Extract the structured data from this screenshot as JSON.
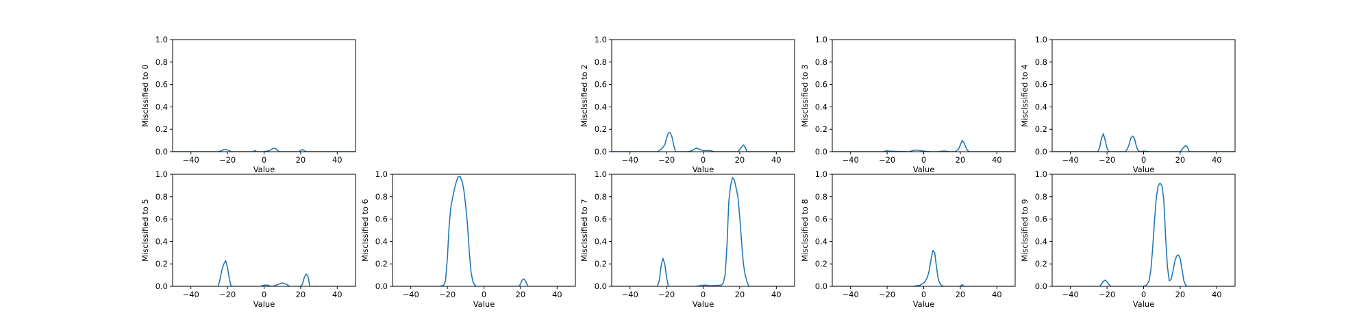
{
  "chart_data": [
    {
      "type": "line",
      "panel": "0",
      "xlabel": "Value",
      "ylabel": "Misclssified to 0",
      "xlim": [
        -50,
        50
      ],
      "ylim": [
        0,
        1
      ],
      "xticks": [
        -40,
        -20,
        0,
        20,
        40
      ],
      "xtick_labels": [
        "−40",
        "−20",
        "0",
        "20",
        "40"
      ],
      "yticks": [
        0,
        0.2,
        0.4,
        0.6,
        0.8,
        1.0
      ],
      "ytick_labels": [
        "0.0",
        "0.2",
        "0.4",
        "0.6",
        "0.8",
        "1.0"
      ],
      "color": "#1f77b4",
      "x": [
        -50,
        -25,
        -23,
        -22,
        -21,
        -19,
        -18,
        -6,
        -5,
        -4,
        0,
        3,
        4,
        5,
        6,
        7,
        8,
        19,
        20,
        21,
        22,
        23,
        24,
        50
      ],
      "y": [
        0,
        0,
        0.01,
        0.02,
        0.02,
        0.01,
        0,
        0,
        0.01,
        0,
        0,
        0.01,
        0.02,
        0.03,
        0.03,
        0.02,
        0,
        0,
        0.01,
        0.02,
        0.01,
        0,
        0,
        0
      ]
    },
    {
      "type": "line",
      "panel": "2",
      "xlabel": "Value",
      "ylabel": "Misclssified to 2",
      "xlim": [
        -50,
        50
      ],
      "ylim": [
        0,
        1
      ],
      "xticks": [
        -40,
        -20,
        0,
        20,
        40
      ],
      "xtick_labels": [
        "−40",
        "−20",
        "0",
        "20",
        "40"
      ],
      "yticks": [
        0,
        0.2,
        0.4,
        0.6,
        0.8,
        1.0
      ],
      "ytick_labels": [
        "0.0",
        "0.2",
        "0.4",
        "0.6",
        "0.8",
        "1.0"
      ],
      "color": "#1f77b4",
      "x": [
        -50,
        -25,
        -24,
        -23,
        -22,
        -21,
        -20,
        -19,
        -18,
        -17,
        -16,
        -15,
        -8,
        -6,
        -5,
        -4,
        -3,
        -2,
        0,
        2,
        4,
        6,
        19,
        20,
        21,
        22,
        23,
        24,
        50
      ],
      "y": [
        0,
        0,
        0.01,
        0.02,
        0.04,
        0.06,
        0.12,
        0.17,
        0.17,
        0.13,
        0.05,
        0,
        0,
        0.01,
        0.02,
        0.03,
        0.03,
        0.02,
        0.01,
        0.01,
        0.01,
        0,
        0,
        0.02,
        0.04,
        0.06,
        0.04,
        0,
        0
      ]
    },
    {
      "type": "line",
      "panel": "3",
      "xlabel": "Value",
      "ylabel": "Misclssified to 3",
      "xlim": [
        -50,
        50
      ],
      "ylim": [
        0,
        1
      ],
      "xticks": [
        -40,
        -20,
        0,
        20,
        40
      ],
      "xtick_labels": [
        "−40",
        "−20",
        "0",
        "20",
        "40"
      ],
      "yticks": [
        0,
        0.2,
        0.4,
        0.6,
        0.8,
        1.0
      ],
      "ytick_labels": [
        "0.0",
        "0.2",
        "0.4",
        "0.6",
        "0.8",
        "1.0"
      ],
      "color": "#1f77b4",
      "x": [
        -50,
        -22,
        -21,
        -20,
        -19,
        -8,
        -6,
        -4,
        -2,
        0,
        4,
        8,
        10,
        12,
        14,
        17,
        19,
        20,
        21,
        22,
        23,
        24,
        25,
        50
      ],
      "y": [
        0,
        0,
        0.005,
        0.01,
        0.005,
        0,
        0.01,
        0.015,
        0.01,
        0.005,
        0,
        0,
        0.005,
        0.005,
        0,
        0,
        0.02,
        0.06,
        0.1,
        0.08,
        0.04,
        0.01,
        0,
        0
      ]
    },
    {
      "type": "line",
      "panel": "4",
      "xlabel": "Value",
      "ylabel": "Misclssified to 4",
      "xlim": [
        -50,
        50
      ],
      "ylim": [
        0,
        1
      ],
      "xticks": [
        -40,
        -20,
        0,
        20,
        40
      ],
      "xtick_labels": [
        "−40",
        "−20",
        "0",
        "20",
        "40"
      ],
      "yticks": [
        0,
        0.2,
        0.4,
        0.6,
        0.8,
        1.0
      ],
      "ytick_labels": [
        "0.0",
        "0.2",
        "0.4",
        "0.6",
        "0.8",
        "1.0"
      ],
      "color": "#1f77b4",
      "x": [
        -50,
        -25,
        -24,
        -23,
        -22,
        -21,
        -20,
        -19,
        -10,
        -9,
        -8,
        -7,
        -6,
        -5,
        -4,
        -3,
        -2,
        0,
        4,
        20,
        21,
        22,
        23,
        24,
        25,
        50
      ],
      "y": [
        0,
        0,
        0.04,
        0.12,
        0.16,
        0.1,
        0.03,
        0,
        0,
        0.02,
        0.06,
        0.12,
        0.14,
        0.12,
        0.05,
        0.01,
        0,
        0.005,
        0,
        0,
        0.02,
        0.04,
        0.055,
        0.04,
        0,
        0
      ]
    },
    {
      "type": "line",
      "panel": "5",
      "xlabel": "Value",
      "ylabel": "Misclssified to 5",
      "xlim": [
        -50,
        50
      ],
      "ylim": [
        0,
        1
      ],
      "xticks": [
        -40,
        -20,
        0,
        20,
        40
      ],
      "xtick_labels": [
        "−40",
        "−20",
        "0",
        "20",
        "40"
      ],
      "yticks": [
        0,
        0.2,
        0.4,
        0.6,
        0.8,
        1.0
      ],
      "ytick_labels": [
        "0.0",
        "0.2",
        "0.4",
        "0.6",
        "0.8",
        "1.0"
      ],
      "color": "#1f77b4",
      "x": [
        -50,
        -25,
        -24,
        -23,
        -22,
        -21,
        -20,
        -19,
        -18,
        -2,
        0,
        2,
        4,
        6,
        8,
        10,
        12,
        14,
        20,
        21,
        22,
        23,
        24,
        25,
        50
      ],
      "y": [
        0,
        0,
        0.07,
        0.15,
        0.2,
        0.23,
        0.17,
        0.07,
        0,
        0,
        0.01,
        0.01,
        0,
        0.005,
        0.02,
        0.03,
        0.02,
        0,
        0,
        0.02,
        0.08,
        0.11,
        0.09,
        0,
        0
      ]
    },
    {
      "type": "line",
      "panel": "6",
      "xlabel": "Value",
      "ylabel": "Misclssified to 6",
      "xlim": [
        -50,
        50
      ],
      "ylim": [
        0,
        1
      ],
      "xticks": [
        -40,
        -20,
        0,
        20,
        40
      ],
      "xtick_labels": [
        "−40",
        "−20",
        "0",
        "20",
        "40"
      ],
      "yticks": [
        0,
        0.2,
        0.4,
        0.6,
        0.8,
        1.0
      ],
      "ytick_labels": [
        "0.0",
        "0.2",
        "0.4",
        "0.6",
        "0.8",
        "1.0"
      ],
      "color": "#1f77b4",
      "x": [
        -50,
        -24,
        -22,
        -21,
        -20,
        -19,
        -18,
        -17,
        -16,
        -15,
        -14,
        -13,
        -12,
        -11,
        -10,
        -9,
        -8,
        -7,
        -6,
        -5,
        -4,
        19,
        20,
        21,
        22,
        23,
        24,
        50
      ],
      "y": [
        0,
        0,
        0.01,
        0.05,
        0.25,
        0.55,
        0.72,
        0.8,
        0.88,
        0.94,
        0.98,
        0.98,
        0.94,
        0.86,
        0.72,
        0.55,
        0.3,
        0.12,
        0.04,
        0.01,
        0,
        0,
        0.02,
        0.06,
        0.065,
        0.04,
        0,
        0
      ]
    },
    {
      "type": "line",
      "panel": "7",
      "xlabel": "Value",
      "ylabel": "Misclssified to 7",
      "xlim": [
        -50,
        50
      ],
      "ylim": [
        0,
        1
      ],
      "xticks": [
        -40,
        -20,
        0,
        20,
        40
      ],
      "xtick_labels": [
        "−40",
        "−20",
        "0",
        "20",
        "40"
      ],
      "yticks": [
        0,
        0.2,
        0.4,
        0.6,
        0.8,
        1.0
      ],
      "ytick_labels": [
        "0.0",
        "0.2",
        "0.4",
        "0.6",
        "0.8",
        "1.0"
      ],
      "color": "#1f77b4",
      "x": [
        -50,
        -25,
        -24,
        -23,
        -22,
        -21,
        -20,
        -19,
        -4,
        -2,
        0,
        2,
        4,
        10,
        11,
        12,
        13,
        14,
        15,
        16,
        17,
        18,
        19,
        20,
        21,
        22,
        23,
        24,
        25,
        50
      ],
      "y": [
        0,
        0,
        0.05,
        0.18,
        0.25,
        0.2,
        0.08,
        0,
        0,
        0.005,
        0.01,
        0.01,
        0.005,
        0.01,
        0.03,
        0.1,
        0.35,
        0.75,
        0.9,
        0.97,
        0.95,
        0.88,
        0.8,
        0.62,
        0.4,
        0.2,
        0.1,
        0.04,
        0,
        0
      ]
    },
    {
      "type": "line",
      "panel": "8",
      "xlabel": "Value",
      "ylabel": "Misclssified to 8",
      "xlim": [
        -50,
        50
      ],
      "ylim": [
        0,
        1
      ],
      "xticks": [
        -40,
        -20,
        0,
        20,
        40
      ],
      "xtick_labels": [
        "−40",
        "−20",
        "0",
        "20",
        "40"
      ],
      "yticks": [
        0,
        0.2,
        0.4,
        0.6,
        0.8,
        1.0
      ],
      "ytick_labels": [
        "0.0",
        "0.2",
        "0.4",
        "0.6",
        "0.8",
        "1.0"
      ],
      "color": "#1f77b4",
      "x": [
        -50,
        -6,
        -4,
        -2,
        -1,
        0,
        1,
        2,
        3,
        4,
        5,
        6,
        7,
        8,
        9,
        10,
        11,
        20,
        21,
        22,
        50
      ],
      "y": [
        0,
        0,
        0.005,
        0.01,
        0.02,
        0.03,
        0.05,
        0.08,
        0.14,
        0.24,
        0.32,
        0.3,
        0.17,
        0.06,
        0.02,
        0.005,
        0,
        0,
        0.015,
        0,
        0
      ]
    },
    {
      "type": "line",
      "panel": "9",
      "xlabel": "Value",
      "ylabel": "Misclssified to 9",
      "xlim": [
        -50,
        50
      ],
      "ylim": [
        0,
        1
      ],
      "xticks": [
        -40,
        -20,
        0,
        20,
        40
      ],
      "xtick_labels": [
        "−40",
        "−20",
        "0",
        "20",
        "40"
      ],
      "yticks": [
        0,
        0.2,
        0.4,
        0.6,
        0.8,
        1.0
      ],
      "ytick_labels": [
        "0.0",
        "0.2",
        "0.4",
        "0.6",
        "0.8",
        "1.0"
      ],
      "color": "#1f77b4",
      "x": [
        -50,
        -24,
        -23,
        -22,
        -21,
        -20,
        -19,
        -18,
        0,
        1,
        2,
        3,
        4,
        5,
        6,
        7,
        8,
        9,
        10,
        11,
        12,
        13,
        14,
        15,
        16,
        17,
        18,
        19,
        20,
        21,
        22,
        23,
        24,
        50
      ],
      "y": [
        0,
        0,
        0.02,
        0.045,
        0.055,
        0.04,
        0.02,
        0,
        0,
        0.005,
        0.02,
        0.05,
        0.15,
        0.35,
        0.6,
        0.8,
        0.9,
        0.92,
        0.9,
        0.78,
        0.45,
        0.18,
        0.05,
        0.06,
        0.13,
        0.22,
        0.27,
        0.28,
        0.25,
        0.15,
        0.05,
        0.01,
        0,
        0
      ]
    }
  ]
}
